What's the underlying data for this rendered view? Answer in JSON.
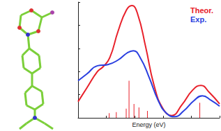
{
  "chart_data": {
    "type": "line",
    "x_label": "Energy (eV)",
    "xlim": [
      0,
      10
    ],
    "xticks": [
      0,
      2,
      4,
      6,
      8,
      10
    ],
    "ylim": [
      0,
      1
    ],
    "yticks": [
      0,
      0.2,
      0.4,
      0.6,
      0.8,
      1
    ],
    "tick_labels": false,
    "grid": false,
    "legend": "top right",
    "series": [
      {
        "name": "Theor.",
        "color": "#e8202a",
        "type": "line",
        "x": [
          0,
          0.63,
          1.37,
          1.76,
          2.24,
          2.83,
          3.41,
          3.8,
          4.2,
          4.78,
          5.37,
          6.0,
          6.63,
          7.32,
          8.1,
          8.68,
          9.27,
          10
        ],
        "values": [
          0.14,
          0.26,
          0.4,
          0.44,
          0.52,
          0.75,
          0.93,
          0.97,
          0.9,
          0.61,
          0.28,
          0.08,
          0.02,
          0.11,
          0.24,
          0.28,
          0.22,
          0.12
        ]
      },
      {
        "name": "Exp.",
        "color": "#2a3fe0",
        "type": "line",
        "x": [
          0,
          0.63,
          1.37,
          2.1,
          2.83,
          3.46,
          3.9,
          4.39,
          5.02,
          5.66,
          6.24,
          6.83,
          7.46,
          8.2,
          8.78,
          9.41,
          10
        ],
        "values": [
          0.32,
          0.38,
          0.45,
          0.46,
          0.5,
          0.56,
          0.58,
          0.52,
          0.35,
          0.15,
          0.04,
          0.01,
          0.06,
          0.15,
          0.19,
          0.15,
          0.1
        ]
      },
      {
        "color": "#e8202a",
        "type": "bar",
        "x": [
          2.2,
          2.7,
          3.4,
          3.6,
          3.95,
          4.3,
          4.9,
          8.6
        ],
        "values": [
          0.04,
          0.05,
          0.08,
          0.32,
          0.12,
          0.09,
          0.06,
          0.13
        ]
      }
    ]
  }
}
